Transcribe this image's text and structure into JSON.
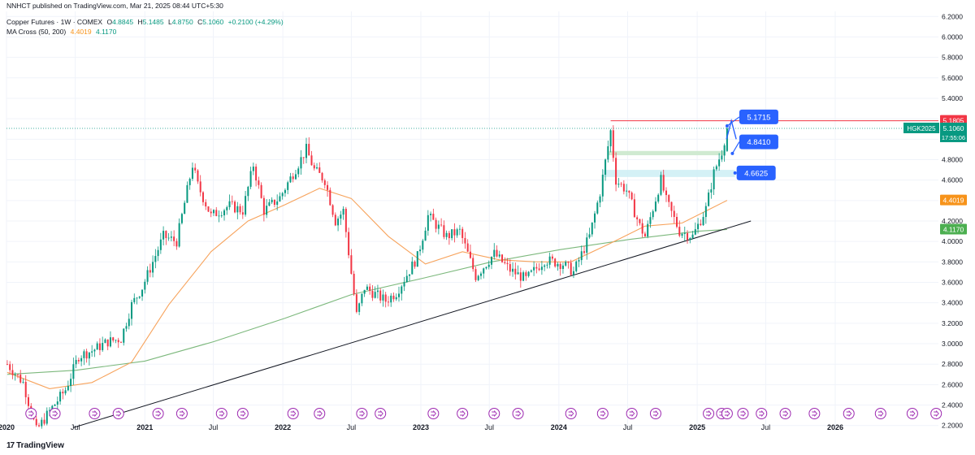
{
  "header": {
    "published": "NNHCT published on TradingView.com, Mar 21, 2025 08:44 UTC+5:30",
    "instrument": "Copper Futures · 1W · COMEX",
    "ohlc": {
      "o_label": "O",
      "o": "4.8845",
      "h_label": "H",
      "h": "5.1485",
      "l_label": "L",
      "l": "4.8750",
      "c_label": "C",
      "c": "5.1060",
      "change": "+0.2100 (+4.29%)"
    },
    "indicator": "MA Cross (50, 200)",
    "ma_fast": "4.4019",
    "ma_slow": "4.1170"
  },
  "footer": {
    "logo_text": "TradingView",
    "logo_mark": "17"
  },
  "colors": {
    "up": "#089981",
    "down": "#f23645",
    "ma_fast": "#f7a35c",
    "ma_slow": "#7cb87c",
    "resistance": "#f23645",
    "callout": "#2962ff",
    "last_price_badge": "#089981",
    "ma_fast_badge": "#f7931a",
    "ma_slow_badge": "#4caf50",
    "grid": "#f0f3fa"
  },
  "chart_data": {
    "type": "candlestick",
    "interval": "1W",
    "ylim": [
      2.15,
      6.25
    ],
    "xlim": [
      "2020-01-01",
      "2026-10-01"
    ],
    "y_ticks": [
      "6.2000",
      "6.0000",
      "5.8000",
      "5.6000",
      "5.4000",
      "5.2000",
      "5.0000",
      "4.8000",
      "4.6000",
      "4.4000",
      "4.2000",
      "4.0000",
      "3.8000",
      "3.6000",
      "3.4000",
      "3.2000",
      "3.0000",
      "2.8000",
      "2.6000",
      "2.4000",
      "2.2000"
    ],
    "x_ticks": [
      {
        "label": "2020",
        "date": "2020-01-01",
        "bold": true
      },
      {
        "label": "Jul",
        "date": "2020-07-01",
        "bold": false
      },
      {
        "label": "2021",
        "date": "2021-01-01",
        "bold": true
      },
      {
        "label": "Jul",
        "date": "2021-07-01",
        "bold": false
      },
      {
        "label": "2022",
        "date": "2022-01-01",
        "bold": true
      },
      {
        "label": "Jul",
        "date": "2022-07-01",
        "bold": false
      },
      {
        "label": "2023",
        "date": "2023-01-01",
        "bold": true
      },
      {
        "label": "Jul",
        "date": "2023-07-01",
        "bold": false
      },
      {
        "label": "2024",
        "date": "2024-01-01",
        "bold": true
      },
      {
        "label": "Jul",
        "date": "2024-07-01",
        "bold": false
      },
      {
        "label": "2025",
        "date": "2025-01-01",
        "bold": true
      },
      {
        "label": "Jul",
        "date": "2025-07-01",
        "bold": false
      },
      {
        "label": "2026",
        "date": "2026-01-01",
        "bold": true
      }
    ],
    "price_anchors": [
      [
        "2020-01-03",
        2.8
      ],
      [
        "2020-02-14",
        2.62
      ],
      [
        "2020-03-20",
        2.15
      ],
      [
        "2020-04-24",
        2.34
      ],
      [
        "2020-06-05",
        2.55
      ],
      [
        "2020-07-10",
        2.88
      ],
      [
        "2020-08-14",
        2.93
      ],
      [
        "2020-09-25",
        3.02
      ],
      [
        "2020-10-30",
        3.05
      ],
      [
        "2020-11-27",
        3.38
      ],
      [
        "2020-12-25",
        3.55
      ],
      [
        "2021-02-19",
        4.05
      ],
      [
        "2021-03-26",
        4.0
      ],
      [
        "2021-05-07",
        4.75
      ],
      [
        "2021-05-21",
        4.55
      ],
      [
        "2021-06-25",
        4.25
      ],
      [
        "2021-08-13",
        4.35
      ],
      [
        "2021-09-17",
        4.3
      ],
      [
        "2021-10-15",
        4.75
      ],
      [
        "2021-11-12",
        4.3
      ],
      [
        "2021-12-24",
        4.43
      ],
      [
        "2022-03-04",
        4.9
      ],
      [
        "2022-03-25",
        4.7
      ],
      [
        "2022-04-22",
        4.6
      ],
      [
        "2022-05-20",
        4.2
      ],
      [
        "2022-06-10",
        4.3
      ],
      [
        "2022-07-15",
        3.28
      ],
      [
        "2022-08-05",
        3.55
      ],
      [
        "2022-09-30",
        3.42
      ],
      [
        "2022-10-28",
        3.5
      ],
      [
        "2022-12-23",
        3.85
      ],
      [
        "2023-01-20",
        4.25
      ],
      [
        "2023-03-10",
        4.05
      ],
      [
        "2023-04-14",
        4.1
      ],
      [
        "2023-05-26",
        3.66
      ],
      [
        "2023-07-14",
        3.88
      ],
      [
        "2023-08-25",
        3.72
      ],
      [
        "2023-10-06",
        3.63
      ],
      [
        "2023-11-24",
        3.82
      ],
      [
        "2024-01-12",
        3.78
      ],
      [
        "2024-02-09",
        3.7
      ],
      [
        "2024-03-22",
        4.05
      ],
      [
        "2024-04-19",
        4.48
      ],
      [
        "2024-05-17",
        5.08
      ],
      [
        "2024-05-31",
        4.6
      ],
      [
        "2024-06-28",
        4.5
      ],
      [
        "2024-08-02",
        4.15
      ],
      [
        "2024-08-16",
        4.05
      ],
      [
        "2024-09-27",
        4.6
      ],
      [
        "2024-10-11",
        4.4
      ],
      [
        "2024-11-15",
        4.1
      ],
      [
        "2024-12-20",
        4.05
      ],
      [
        "2025-01-24",
        4.32
      ],
      [
        "2025-02-14",
        4.67
      ],
      [
        "2025-03-07",
        4.88
      ],
      [
        "2025-03-21",
        5.106
      ]
    ],
    "ma_fast_series": [
      [
        "2020-01-03",
        2.72
      ],
      [
        "2020-04-24",
        2.56
      ],
      [
        "2020-08-14",
        2.62
      ],
      [
        "2020-11-27",
        2.82
      ],
      [
        "2021-03-05",
        3.38
      ],
      [
        "2021-06-25",
        3.9
      ],
      [
        "2021-10-01",
        4.2
      ],
      [
        "2022-01-07",
        4.36
      ],
      [
        "2022-04-08",
        4.52
      ],
      [
        "2022-07-01",
        4.42
      ],
      [
        "2022-10-07",
        4.05
      ],
      [
        "2023-01-13",
        3.78
      ],
      [
        "2023-04-21",
        3.9
      ],
      [
        "2023-07-28",
        3.82
      ],
      [
        "2023-11-03",
        3.8
      ],
      [
        "2024-02-02",
        3.8
      ],
      [
        "2024-05-10",
        3.97
      ],
      [
        "2024-08-16",
        4.15
      ],
      [
        "2024-11-22",
        4.18
      ],
      [
        "2025-03-21",
        4.4019
      ]
    ],
    "ma_slow_series": [
      [
        "2020-01-03",
        2.7
      ],
      [
        "2020-07-03",
        2.74
      ],
      [
        "2021-01-01",
        2.83
      ],
      [
        "2021-07-02",
        3.02
      ],
      [
        "2022-01-07",
        3.25
      ],
      [
        "2022-07-01",
        3.48
      ],
      [
        "2023-01-06",
        3.64
      ],
      [
        "2023-07-07",
        3.8
      ],
      [
        "2024-01-05",
        3.92
      ],
      [
        "2024-07-05",
        4.02
      ],
      [
        "2025-01-03",
        4.1
      ],
      [
        "2025-03-21",
        4.117
      ]
    ],
    "support_trendline": [
      [
        "2020-06-26",
        2.18
      ],
      [
        "2025-05-23",
        4.2
      ]
    ],
    "resistance_line": {
      "start": "2024-05-17",
      "end": "2026-10-01",
      "value": 5.1805
    },
    "zones": [
      {
        "start": "2024-05-10",
        "end": "2025-03-14",
        "low": 4.843,
        "high": 4.885,
        "color": "#c8e6c9"
      },
      {
        "start": "2024-04-26",
        "end": "2025-04-11",
        "low": 4.63,
        "high": 4.7,
        "color": "#cdeef5"
      }
    ],
    "annotations": [
      {
        "text": "5.1715",
        "anchor_date": "2025-03-21",
        "anchor_value": 5.13,
        "target_date": "2025-04-18",
        "target_value": 5.17
      },
      {
        "text": "4.8410",
        "anchor_date": "2025-04-04",
        "anchor_value": 4.86,
        "target_date": "2025-04-18",
        "target_value": 4.95
      },
      {
        "text": "4.6625",
        "anchor_date": "2025-04-11",
        "anchor_value": 4.67,
        "target_date": "2025-04-11",
        "target_value": 4.67
      }
    ],
    "price_badges": [
      {
        "text": "5.1805",
        "value": 5.1805,
        "color": "#f23645"
      },
      {
        "text": "5.1060",
        "value": 5.106,
        "color": "#089981",
        "ticker": "HGK2025",
        "countdown": "17:55:06"
      },
      {
        "text": "4.4019",
        "value": 4.4019,
        "color": "#f7931a"
      },
      {
        "text": "4.1170",
        "value": 4.117,
        "color": "#4caf50"
      }
    ],
    "event_markers": [
      "2020-03-06",
      "2020-05-08",
      "2020-08-21",
      "2020-10-23",
      "2021-02-05",
      "2021-04-09",
      "2021-07-23",
      "2021-09-17",
      "2022-01-28",
      "2022-04-08",
      "2022-07-29",
      "2022-09-16",
      "2023-02-03",
      "2023-04-21",
      "2023-07-14",
      "2023-09-15",
      "2024-02-02",
      "2024-04-26",
      "2024-07-12",
      "2024-09-13",
      "2025-01-31",
      "2025-03-07",
      "2025-03-21",
      "2025-05-02",
      "2025-06-20",
      "2025-08-22",
      "2025-11-07",
      "2026-02-06",
      "2026-05-01",
      "2026-07-24",
      "2026-09-25"
    ]
  }
}
